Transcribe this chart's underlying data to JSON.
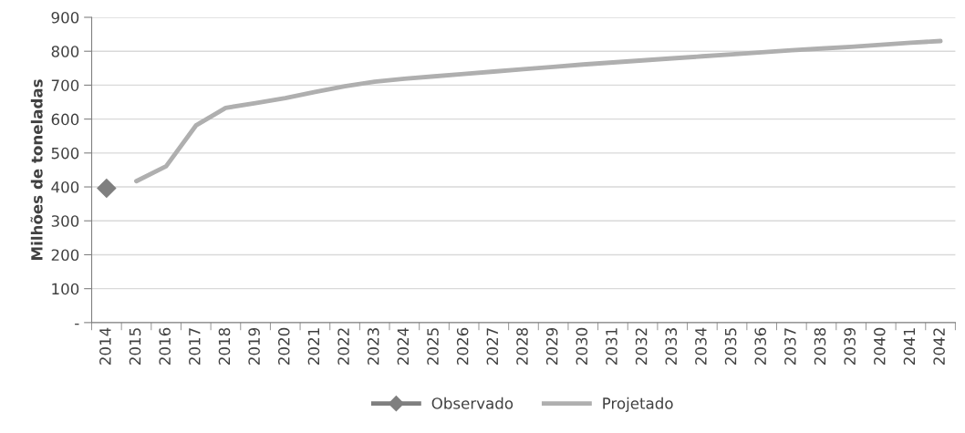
{
  "chart_data": {
    "type": "line",
    "ylabel": "Milhões de toneladas",
    "categories": [
      "2014",
      "2015",
      "2016",
      "2017",
      "2018",
      "2019",
      "2020",
      "2021",
      "2022",
      "2023",
      "2024",
      "2025",
      "2026",
      "2027",
      "2028",
      "2029",
      "2030",
      "2031",
      "2032",
      "2033",
      "2034",
      "2035",
      "2036",
      "2037",
      "2038",
      "2039",
      "2040",
      "2041",
      "2042"
    ],
    "series": [
      {
        "name": "Observado",
        "color": "#7f7f7f",
        "marker": "diamond",
        "values": [
          396,
          null,
          null,
          null,
          null,
          null,
          null,
          null,
          null,
          null,
          null,
          null,
          null,
          null,
          null,
          null,
          null,
          null,
          null,
          null,
          null,
          null,
          null,
          null,
          null,
          null,
          null,
          null,
          null
        ]
      },
      {
        "name": "Projetado",
        "color": "#afafaf",
        "marker": "none",
        "values": [
          null,
          417,
          461,
          581,
          633,
          647,
          662,
          680,
          697,
          710,
          719,
          726,
          733,
          740,
          747,
          754,
          761,
          767,
          773,
          779,
          785,
          791,
          797,
          803,
          808,
          813,
          819,
          825,
          830
        ]
      }
    ],
    "ylim": [
      0,
      900
    ],
    "yticks": [
      {
        "value": 0,
        "label": "-"
      },
      100,
      200,
      300,
      400,
      500,
      600,
      700,
      800,
      900
    ],
    "grid": "y",
    "legend": "bottom",
    "line_style": "solid"
  }
}
